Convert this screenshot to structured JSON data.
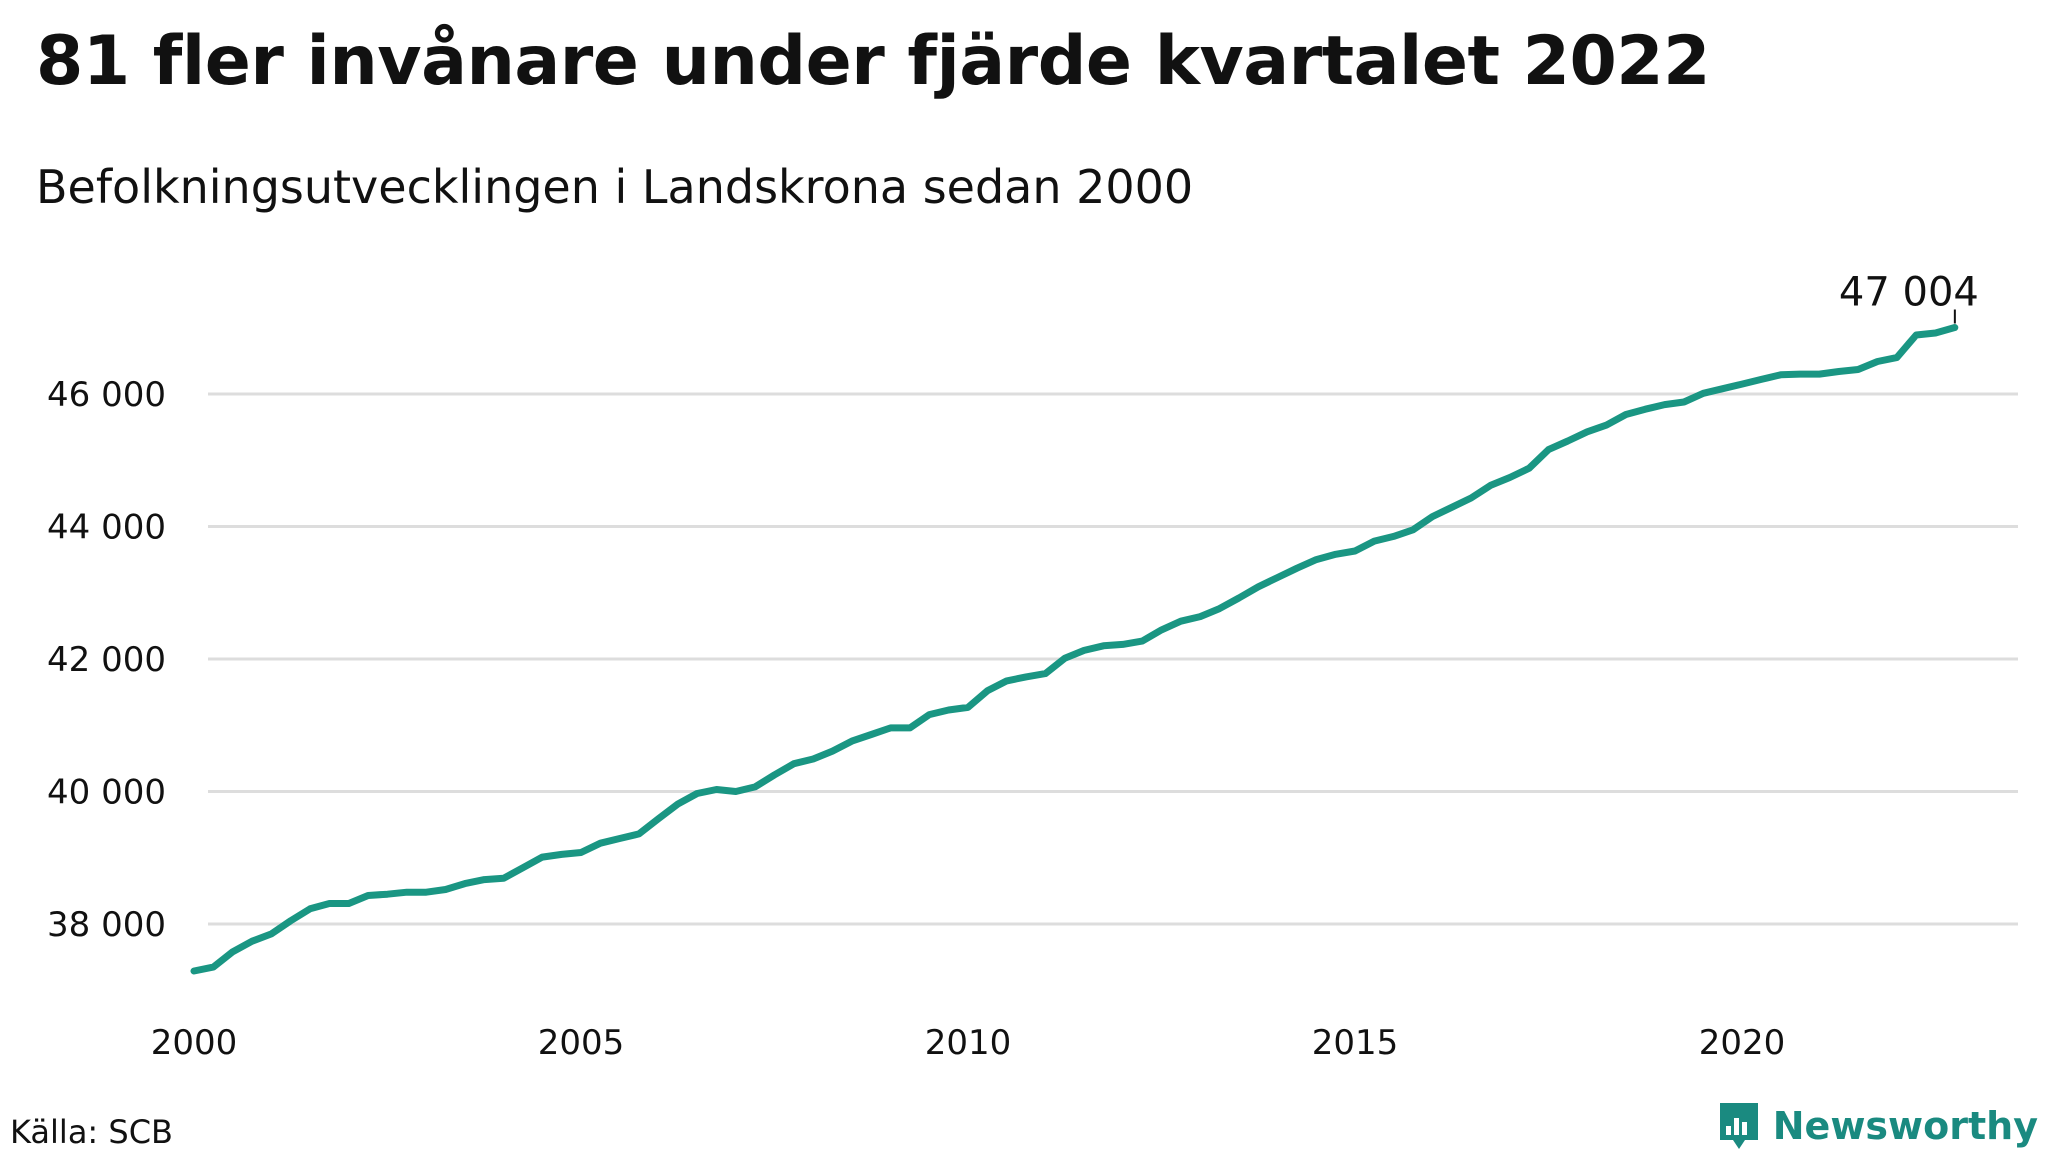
{
  "title": "81 fler invånare under fjärde kvartalet 2022",
  "subtitle": "Befolkningsutvecklingen i Landskrona sedan 2000",
  "source": "Källa: SCB",
  "brand": {
    "name": "Newsworthy",
    "icon": "bar-chart-speech-bubble-icon",
    "color": "#1a8a80"
  },
  "colors": {
    "line": "#1a9683",
    "grid": "#dddddd",
    "text": "#111111"
  },
  "chart_data": {
    "type": "line",
    "title": "81 fler invånare under fjärde kvartalet 2022",
    "subtitle": "Befolkningsutvecklingen i Landskrona sedan 2000",
    "xlabel": "",
    "ylabel": "",
    "xlim": [
      2000,
      2023.7
    ],
    "ylim": [
      36900,
      47700
    ],
    "grid": true,
    "legend": "none",
    "x_ticks": [
      2000,
      2005,
      2010,
      2015,
      2020
    ],
    "x_tick_labels": [
      "2000",
      "2005",
      "2010",
      "2015",
      "2020"
    ],
    "y_ticks": [
      38000,
      40000,
      42000,
      44000,
      46000
    ],
    "y_tick_labels": [
      "38 000",
      "40 000",
      "42 000",
      "44 000",
      "46 000"
    ],
    "end_label": "47 004",
    "series": [
      {
        "x": [
          2000.0,
          2000.25,
          2000.5,
          2000.75,
          2001.0,
          2001.25,
          2001.5,
          2001.75,
          2002.0,
          2002.25,
          2002.5,
          2002.75,
          2003.0,
          2003.25,
          2003.5,
          2003.75,
          2004.0,
          2004.25,
          2004.5,
          2004.75,
          2005.0,
          2005.25,
          2005.5,
          2005.75,
          2006.0,
          2006.25,
          2006.5,
          2006.75,
          2007.0,
          2007.25,
          2007.5,
          2007.75,
          2008.0,
          2008.25,
          2008.5,
          2008.75,
          2009.0,
          2009.25,
          2009.5,
          2009.75,
          2010.0,
          2010.25,
          2010.5,
          2010.75,
          2011.0,
          2011.25,
          2011.5,
          2011.75,
          2012.0,
          2012.25,
          2012.5,
          2012.75,
          2013.0,
          2013.25,
          2013.5,
          2013.75,
          2014.0,
          2014.25,
          2014.5,
          2014.75,
          2015.0,
          2015.25,
          2015.5,
          2015.75,
          2016.0,
          2016.25,
          2016.5,
          2016.75,
          2017.0,
          2017.25,
          2017.5,
          2017.75,
          2018.0,
          2018.25,
          2018.5,
          2018.75,
          2019.0,
          2019.25,
          2019.5,
          2019.75,
          2020.0,
          2020.25,
          2020.5,
          2020.75,
          2021.0,
          2021.25,
          2021.5,
          2021.75,
          2022.0,
          2022.25,
          2022.5,
          2022.75
        ],
        "y": [
          37290,
          37350,
          37580,
          37740,
          37850,
          38050,
          38230,
          38310,
          38310,
          38430,
          38450,
          38480,
          38480,
          38520,
          38610,
          38670,
          38690,
          38850,
          39010,
          39050,
          39080,
          39220,
          39290,
          39360,
          39590,
          39810,
          39970,
          40030,
          40000,
          40070,
          40250,
          40420,
          40490,
          40610,
          40760,
          40860,
          40960,
          40960,
          41160,
          41230,
          41270,
          41520,
          41670,
          41730,
          41780,
          42010,
          42130,
          42200,
          42220,
          42270,
          42440,
          42570,
          42640,
          42760,
          42920,
          43090,
          43230,
          43370,
          43500,
          43580,
          43630,
          43780,
          43850,
          43950,
          44150,
          44290,
          44430,
          44620,
          44740,
          44880,
          45160,
          45290,
          45430,
          45530,
          45690,
          45770,
          45840,
          45880,
          46010,
          46080,
          46150,
          46220,
          46290,
          46300,
          46300,
          46340,
          46370,
          46490,
          46550,
          46890,
          46920,
          47004
        ]
      }
    ]
  }
}
